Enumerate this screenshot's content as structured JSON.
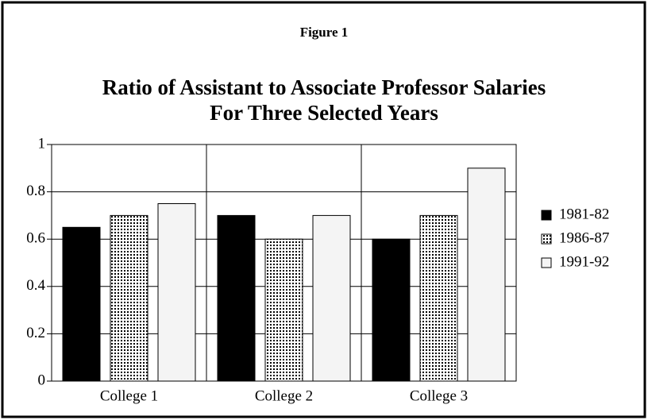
{
  "chart_data": {
    "type": "bar",
    "figure_label": "Figure 1",
    "title": "Ratio of Assistant to Associate Professor Salaries",
    "subtitle": "For Three Selected Years",
    "categories": [
      "College 1",
      "College 2",
      "College 3"
    ],
    "series": [
      {
        "name": "1981-82",
        "color": "#000000",
        "values": [
          0.65,
          0.7,
          0.6
        ]
      },
      {
        "name": "1986-87",
        "color": "#000000",
        "pattern": "dots",
        "values": [
          0.7,
          0.6,
          0.7
        ]
      },
      {
        "name": "1991-92",
        "color": "#f4f4f4",
        "values": [
          0.75,
          0.7,
          0.9
        ]
      }
    ],
    "ylim": [
      0,
      1
    ],
    "yticks": [
      0,
      0.2,
      0.4,
      0.6,
      0.8,
      1
    ],
    "grid": true,
    "legend": "right"
  }
}
